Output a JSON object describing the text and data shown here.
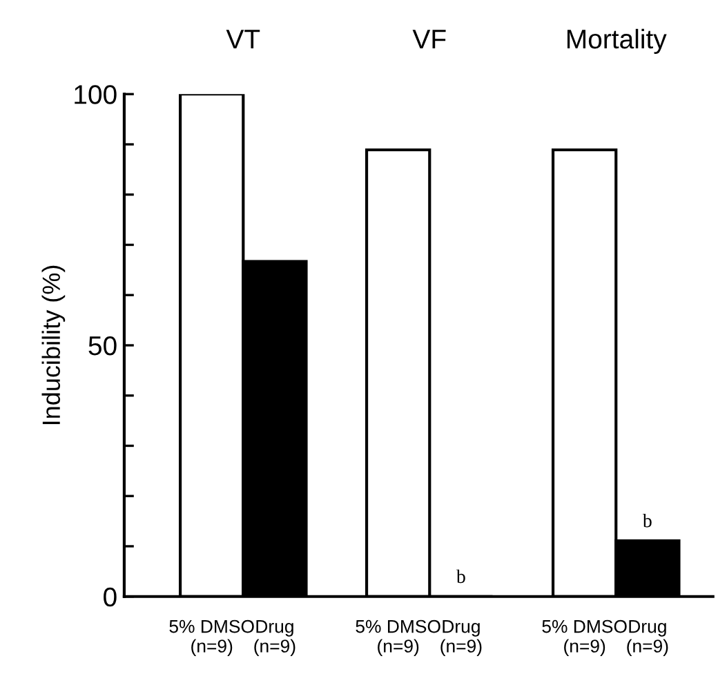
{
  "chart_data": {
    "type": "bar",
    "categories": [
      "5% DMSO\n(n=9)",
      "Drug\n(n=9)",
      "5% DMSO\n(n=9)",
      "Drug\n(n=9)",
      "5% DMSO\n(n=9)",
      "Drug\n(n=9)"
    ],
    "values": [
      100,
      66.7,
      88.9,
      0,
      88.9,
      11.1
    ],
    "colors": [
      "#ffffff",
      "#000000",
      "#ffffff",
      "#000000",
      "#ffffff",
      "#000000"
    ],
    "value_labels": [
      null,
      null,
      null,
      "b",
      null,
      "b"
    ],
    "ylabel": "Inducibility (%)",
    "ylim": [
      0,
      100
    ],
    "yticks": [
      0,
      {
        "value": 10,
        "label": null
      },
      {
        "value": 20,
        "label": null
      },
      {
        "value": 30,
        "label": null
      },
      {
        "value": 40,
        "label": null
      },
      50,
      {
        "value": 60,
        "label": null
      },
      {
        "value": 70,
        "label": null
      },
      {
        "value": 80,
        "label": null
      },
      {
        "value": 90,
        "label": null
      },
      100
    ],
    "annotations": [
      "VT",
      "VF",
      "Mortality"
    ],
    "grid": false,
    "legend": false
  }
}
